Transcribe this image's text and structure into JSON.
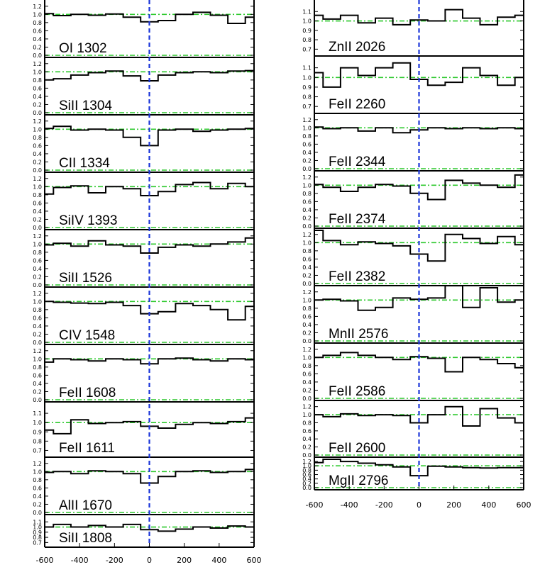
{
  "chart_data": {
    "type": "line",
    "xlim": [
      -600,
      600
    ],
    "x_ticks": [
      -600,
      -400,
      -200,
      0,
      200,
      400,
      600
    ],
    "x_tick_labels": [
      "-600",
      "-400",
      "-200",
      "0",
      "200",
      "400",
      "600"
    ],
    "zero_velocity_line": 0,
    "reference_levels": [
      0.0,
      1.0
    ],
    "colors": {
      "step": "#000000",
      "continuum": "#2ec92e",
      "zero": "#1a35d9"
    },
    "bin_edges": [
      -600,
      -550,
      -450,
      -350,
      -250,
      -150,
      -50,
      50,
      150,
      250,
      350,
      450,
      550,
      600
    ],
    "columns": [
      [
        {
          "ion": "OI 1302",
          "ylim": [
            0.0,
            1.3
          ],
          "y_ticks": [
            0.0,
            0.2,
            0.4,
            0.6,
            0.8,
            1.0,
            1.2
          ],
          "y_tick_labels": [
            "0.0",
            "0.2",
            "0.4",
            "0.6",
            "0.8",
            "1.0",
            "1.2"
          ],
          "values": [
            1.02,
            0.97,
            1.0,
            0.98,
            1.01,
            0.93,
            0.82,
            0.85,
            1.0,
            1.05,
            0.98,
            0.78,
            0.93
          ]
        },
        {
          "ion": "SiII 1304",
          "ylim": [
            0.0,
            1.3
          ],
          "y_ticks": [
            0.0,
            0.2,
            0.4,
            0.6,
            0.8,
            1.0,
            1.2
          ],
          "y_tick_labels": [
            "0.0",
            "0.2",
            "0.4",
            "0.6",
            "0.8",
            "1.0",
            "1.2"
          ],
          "values": [
            0.8,
            0.83,
            0.92,
            0.98,
            1.02,
            0.9,
            0.78,
            0.92,
            0.98,
            1.0,
            0.98,
            1.02,
            1.03
          ]
        },
        {
          "ion": "CII 1334",
          "ylim": [
            0.0,
            1.3
          ],
          "y_ticks": [
            0.0,
            0.2,
            0.4,
            0.6,
            0.8,
            1.0,
            1.2
          ],
          "y_tick_labels": [
            "0.0",
            "0.2",
            "0.4",
            "0.6",
            "0.8",
            "1.0",
            "1.2"
          ],
          "values": [
            1.02,
            1.07,
            0.98,
            1.0,
            0.98,
            0.8,
            0.6,
            0.98,
            1.0,
            0.95,
            0.98,
            1.0,
            1.02
          ]
        },
        {
          "ion": "SiIV 1393",
          "ylim": [
            0.0,
            1.3
          ],
          "y_ticks": [
            0.0,
            0.2,
            0.4,
            0.6,
            0.8,
            1.0,
            1.2
          ],
          "y_tick_labels": [
            "0.0",
            "0.2",
            "0.4",
            "0.6",
            "0.8",
            "1.0",
            "1.2"
          ],
          "values": [
            0.82,
            0.98,
            1.02,
            0.85,
            1.0,
            0.95,
            0.78,
            0.88,
            1.05,
            1.1,
            0.95,
            1.08,
            1.0
          ]
        },
        {
          "ion": "SiII 1526",
          "ylim": [
            0.0,
            1.3
          ],
          "y_ticks": [
            0.0,
            0.2,
            0.4,
            0.6,
            0.8,
            1.0,
            1.2
          ],
          "y_tick_labels": [
            "0.0",
            "0.2",
            "0.4",
            "0.6",
            "0.8",
            "1.0",
            "1.2"
          ],
          "values": [
            0.98,
            1.02,
            0.95,
            1.08,
            0.98,
            0.95,
            0.78,
            0.92,
            0.98,
            0.95,
            1.0,
            1.05,
            1.15
          ]
        },
        {
          "ion": "CIV 1548",
          "ylim": [
            0.0,
            1.3
          ],
          "y_ticks": [
            0.0,
            0.2,
            0.4,
            0.6,
            0.8,
            1.0,
            1.2
          ],
          "y_tick_labels": [
            "0.0",
            "0.2",
            "0.4",
            "0.6",
            "0.8",
            "1.0",
            "1.2"
          ],
          "values": [
            1.0,
            0.98,
            0.96,
            0.95,
            0.98,
            0.9,
            0.7,
            0.75,
            0.95,
            0.9,
            0.8,
            0.55,
            0.88
          ]
        },
        {
          "ion": "FeII 1608",
          "ylim": [
            0.0,
            1.3
          ],
          "y_ticks": [
            0.0,
            0.2,
            0.4,
            0.6,
            0.8,
            1.0,
            1.2
          ],
          "y_tick_labels": [
            "0.0",
            "0.2",
            "0.4",
            "0.6",
            "0.8",
            "1.0",
            "1.2"
          ],
          "values": [
            0.92,
            1.0,
            0.98,
            0.95,
            1.0,
            0.98,
            0.88,
            1.0,
            1.02,
            0.98,
            0.95,
            1.0,
            0.98
          ]
        },
        {
          "ion": "FeII 1611",
          "ylim": [
            0.65,
            1.2
          ],
          "y_ticks": [
            0.7,
            0.8,
            0.9,
            1.0,
            1.1
          ],
          "y_tick_labels": [
            "0.7",
            "0.8",
            "0.9",
            "1.0",
            "1.1"
          ],
          "values": [
            0.92,
            0.88,
            1.03,
            0.99,
            1.0,
            1.01,
            0.96,
            0.94,
            0.98,
            1.0,
            0.99,
            1.01,
            1.05
          ]
        },
        {
          "ion": "AlII 1670",
          "ylim": [
            0.0,
            1.3
          ],
          "y_ticks": [
            0.0,
            0.2,
            0.4,
            0.6,
            0.8,
            1.0,
            1.2
          ],
          "y_tick_labels": [
            "0.0",
            "0.2",
            "0.4",
            "0.6",
            "0.8",
            "1.0",
            "1.2"
          ],
          "values": [
            0.98,
            1.0,
            0.95,
            1.02,
            1.0,
            0.95,
            0.72,
            0.88,
            1.0,
            1.02,
            0.98,
            1.0,
            1.05
          ]
        },
        {
          "ion": "SiII 1808",
          "ylim": [
            0.65,
            1.2
          ],
          "y_ticks": [
            0.7,
            0.8,
            0.9,
            1.0,
            1.1
          ],
          "y_tick_labels": [
            "0.7",
            "0.8",
            "0.9",
            "1.0",
            "1.1"
          ],
          "values": [
            1.0,
            1.05,
            1.0,
            1.03,
            1.0,
            1.05,
            0.95,
            0.92,
            0.96,
            1.0,
            0.98,
            1.02,
            1.0
          ]
        }
      ],
      [
        {
          "ion": "ZnII 2026",
          "ylim": [
            0.65,
            1.2
          ],
          "y_ticks": [
            0.7,
            0.8,
            0.9,
            1.0,
            1.1
          ],
          "y_tick_labels": [
            "0.7",
            "0.8",
            "0.9",
            "1.0",
            "1.1"
          ],
          "values": [
            1.06,
            1.02,
            1.06,
            0.98,
            1.03,
            0.96,
            1.01,
            1.0,
            1.12,
            1.03,
            0.96,
            1.04,
            1.06
          ]
        },
        {
          "ion": "FeII 2260",
          "ylim": [
            0.65,
            1.2
          ],
          "y_ticks": [
            0.7,
            0.8,
            0.9,
            1.0,
            1.1
          ],
          "y_tick_labels": [
            "0.7",
            "0.8",
            "0.9",
            "1.0",
            "1.1"
          ],
          "values": [
            1.05,
            0.9,
            1.1,
            1.02,
            1.1,
            1.15,
            0.98,
            0.92,
            0.95,
            1.1,
            1.02,
            0.92,
            1.0
          ]
        },
        {
          "ion": "FeII 2344",
          "ylim": [
            0.0,
            1.3
          ],
          "y_ticks": [
            0.0,
            0.2,
            0.4,
            0.6,
            0.8,
            1.0,
            1.2
          ],
          "y_tick_labels": [
            "0.0",
            "0.2",
            "0.4",
            "0.6",
            "0.8",
            "1.0",
            "1.2"
          ],
          "values": [
            1.02,
            0.98,
            1.0,
            0.92,
            1.0,
            0.88,
            0.95,
            1.0,
            0.98,
            1.0,
            0.98,
            1.0,
            0.98
          ]
        },
        {
          "ion": "FeII 2374",
          "ylim": [
            0.0,
            1.3
          ],
          "y_ticks": [
            0.0,
            0.2,
            0.4,
            0.6,
            0.8,
            1.0,
            1.2
          ],
          "y_tick_labels": [
            "0.0",
            "0.2",
            "0.4",
            "0.6",
            "0.8",
            "1.0",
            "1.2"
          ],
          "values": [
            1.02,
            0.95,
            0.85,
            0.95,
            1.02,
            0.98,
            0.8,
            0.65,
            1.12,
            1.05,
            1.0,
            0.95,
            1.25
          ]
        },
        {
          "ion": "FeII 2382",
          "ylim": [
            0.0,
            1.3
          ],
          "y_ticks": [
            0.0,
            0.2,
            0.4,
            0.6,
            0.8,
            1.0,
            1.2
          ],
          "y_tick_labels": [
            "0.0",
            "0.2",
            "0.4",
            "0.6",
            "0.8",
            "1.0",
            "1.2"
          ],
          "values": [
            1.3,
            1.05,
            0.95,
            1.02,
            0.98,
            0.92,
            0.72,
            0.55,
            1.2,
            1.1,
            0.98,
            1.15,
            0.95
          ]
        },
        {
          "ion": "MnII 2576",
          "ylim": [
            0.0,
            1.3
          ],
          "y_ticks": [
            0.0,
            0.2,
            0.4,
            0.6,
            0.8,
            1.0,
            1.2
          ],
          "y_tick_labels": [
            "0.0",
            "0.2",
            "0.4",
            "0.6",
            "0.8",
            "1.0",
            "1.2"
          ],
          "values": [
            1.0,
            1.02,
            0.98,
            0.75,
            0.82,
            1.05,
            1.02,
            1.05,
            1.35,
            0.82,
            1.3,
            0.95,
            1.0
          ]
        },
        {
          "ion": "FeII 2586",
          "ylim": [
            0.0,
            1.3
          ],
          "y_ticks": [
            0.0,
            0.2,
            0.4,
            0.6,
            0.8,
            1.0,
            1.2
          ],
          "y_tick_labels": [
            "0.0",
            "0.2",
            "0.4",
            "0.6",
            "0.8",
            "1.0",
            "1.2"
          ],
          "values": [
            1.0,
            1.05,
            1.12,
            1.05,
            1.0,
            0.95,
            1.02,
            0.98,
            0.65,
            1.0,
            0.95,
            0.85,
            0.75
          ]
        },
        {
          "ion": "FeII 2600",
          "ylim": [
            0.0,
            1.3
          ],
          "y_ticks": [
            0.0,
            0.2,
            0.4,
            0.6,
            0.8,
            1.0,
            1.2
          ],
          "y_tick_labels": [
            "0.0",
            "0.2",
            "0.4",
            "0.6",
            "0.8",
            "1.0",
            "1.2"
          ],
          "values": [
            1.0,
            0.95,
            1.02,
            0.98,
            1.0,
            0.98,
            0.8,
            1.0,
            1.2,
            0.72,
            1.15,
            0.92,
            0.8
          ]
        },
        {
          "ion": "MgII 2796",
          "ylim": [
            0.0,
            1.3
          ],
          "y_ticks": [
            0.0,
            0.2,
            0.4,
            0.6,
            0.8,
            1.0,
            1.2
          ],
          "y_tick_labels": [
            "0.0",
            "0.2",
            "0.4",
            "0.6",
            "0.8",
            "1.0",
            "1.2"
          ],
          "values": [
            1.15,
            1.3,
            1.2,
            1.12,
            1.05,
            0.95,
            0.55,
            0.98,
            0.95,
            0.92,
            0.9,
            0.92,
            0.92
          ]
        }
      ]
    ]
  }
}
